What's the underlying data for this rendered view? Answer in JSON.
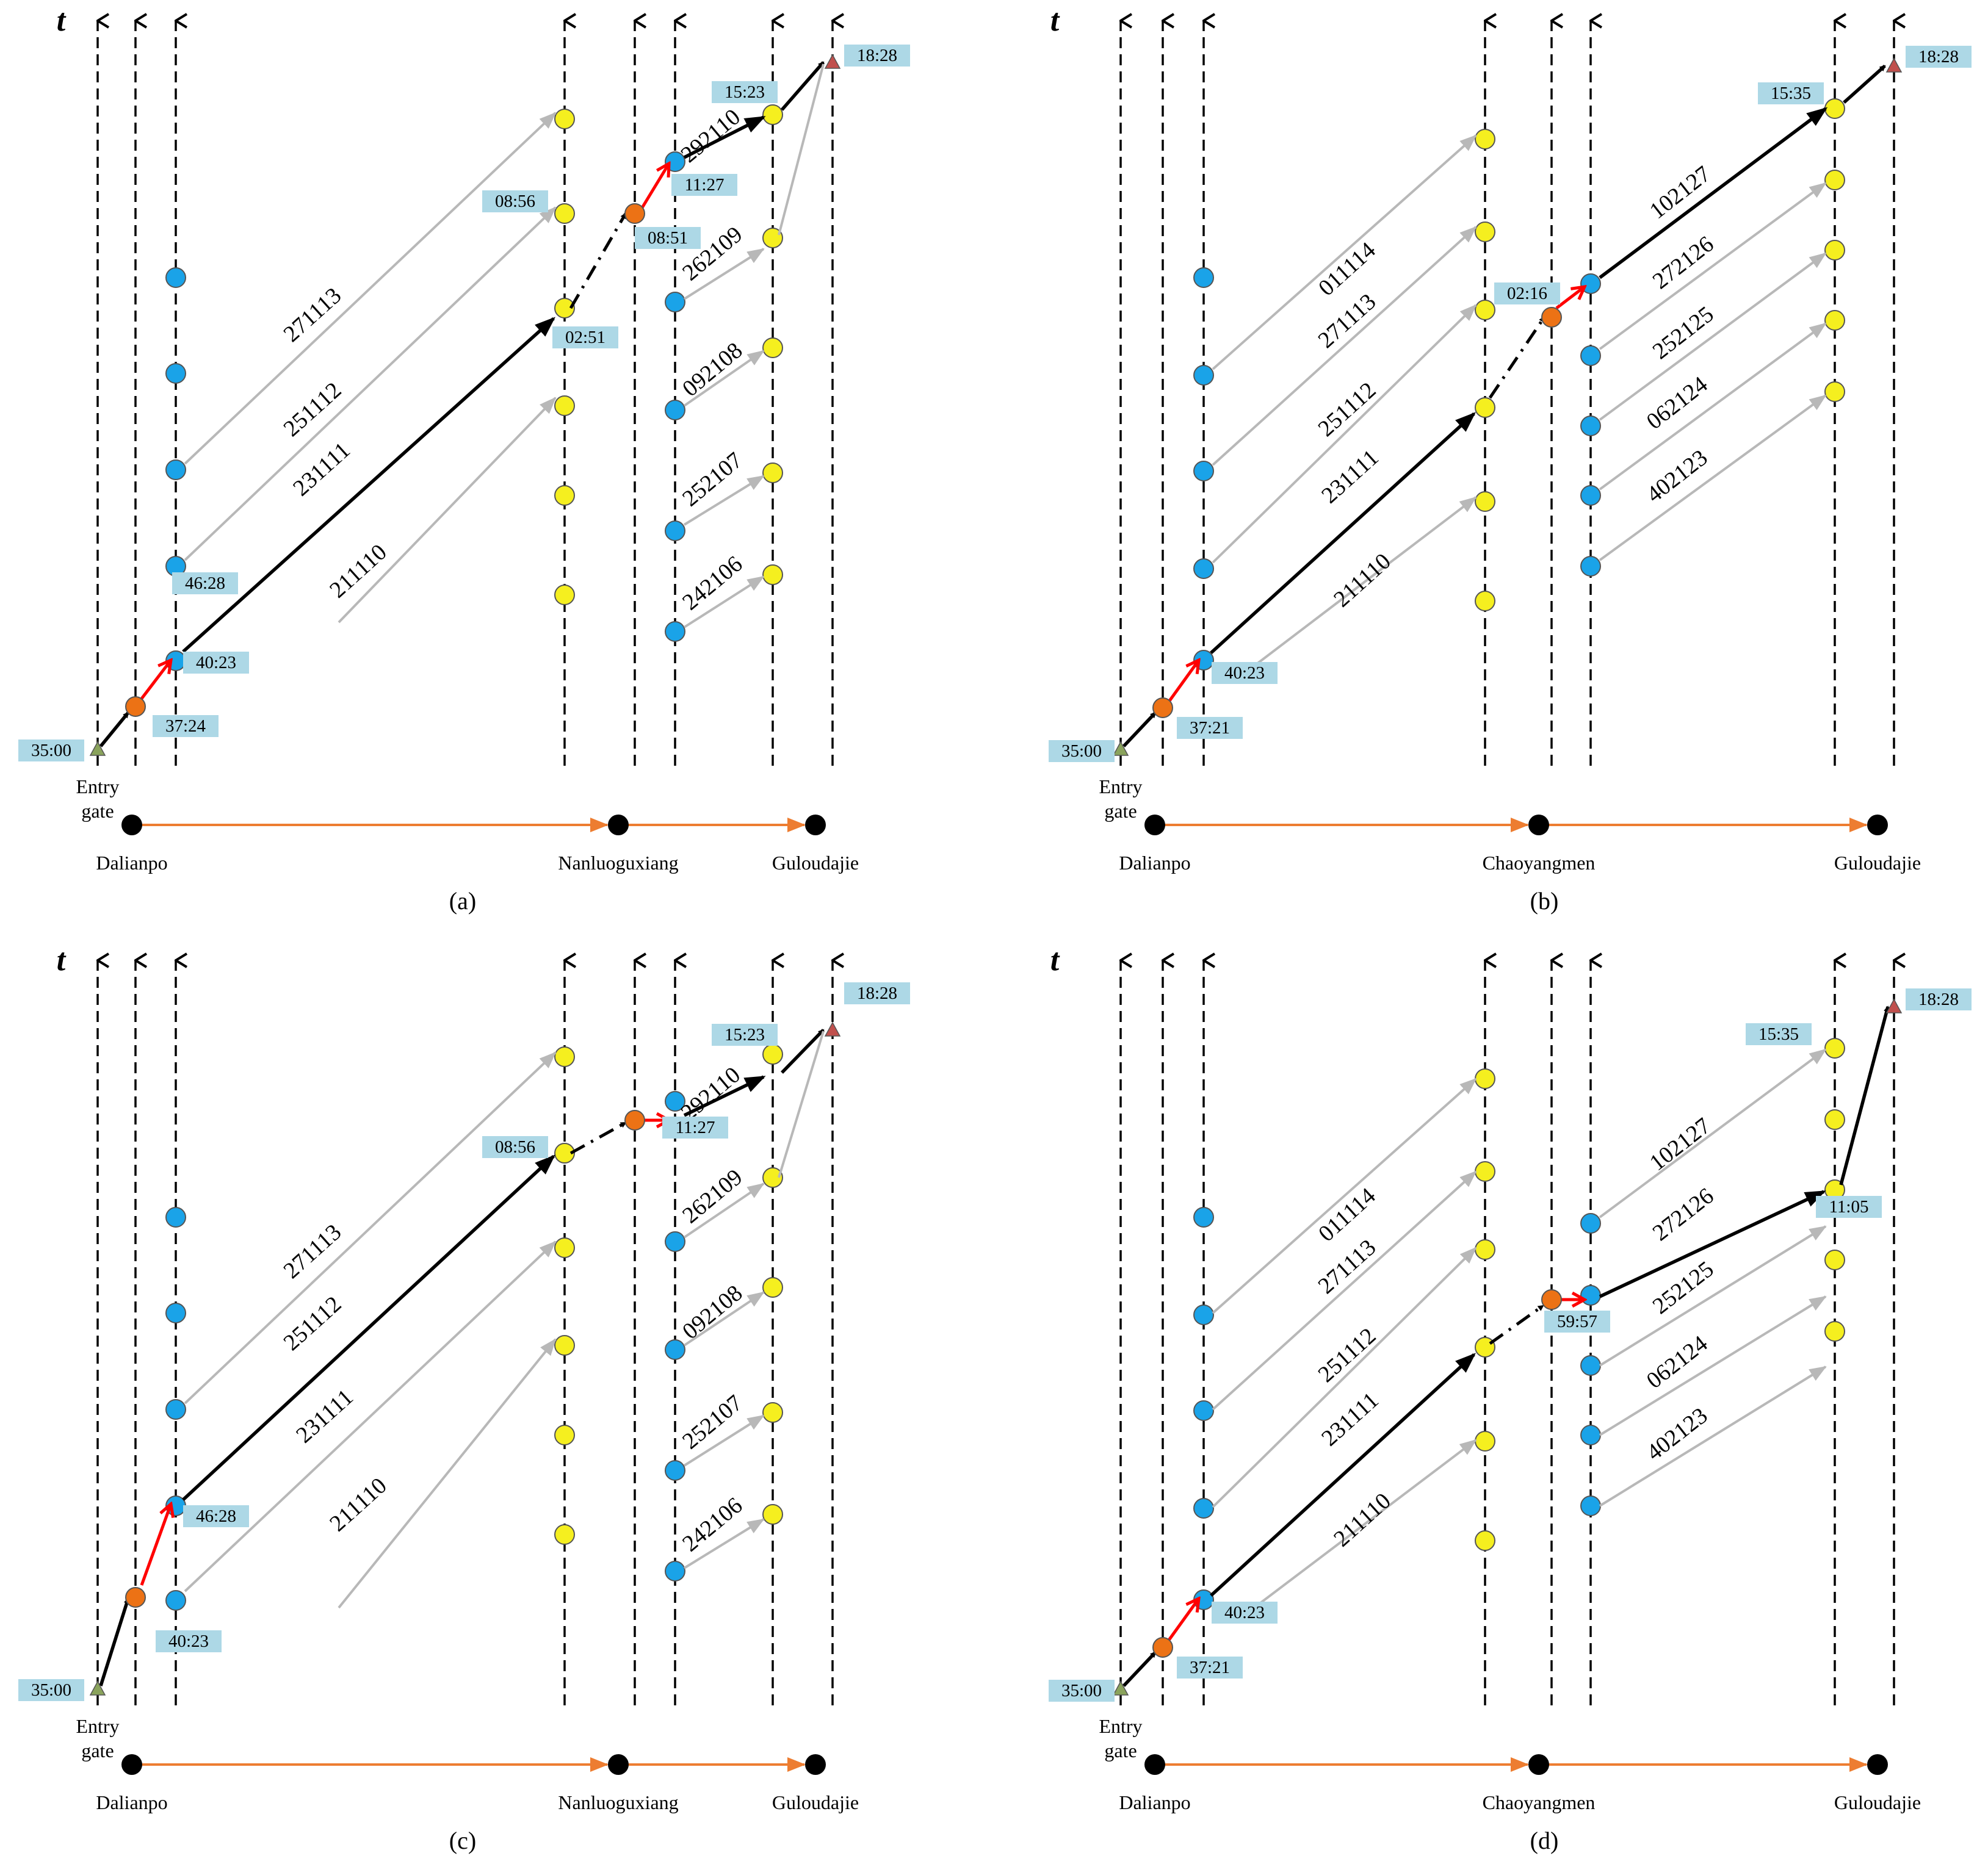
{
  "axis_label": "t",
  "colors": {
    "access_dot": "#f5ef1f",
    "platform_dot": "#1aa3e8",
    "transfer_dot": "#ec7215",
    "path_line": "#000000",
    "walk_line": "#ff0000",
    "other_train": "#b8b8b8",
    "time_box": "#add8e6",
    "station_arrow": "#ed7d31",
    "entry_marker": "#8aa35c",
    "exit_marker": "#c0504d"
  },
  "panels": [
    {
      "caption": "(a)",
      "entry_label": "Entry\ngate",
      "stations": [
        "Dalianpo",
        "Nanluoguxiang",
        "Guloudajie"
      ],
      "times": {
        "entry": "35:00",
        "arrive_platform": "37:24",
        "board": "40:23",
        "extra_board": "46:28",
        "arrive_transfer": "02:51",
        "arrive_transfer_alt": "08:56",
        "transfer_walk": "08:51",
        "board2": "11:27",
        "arrive_dest": "15:23",
        "exit": "18:28"
      },
      "trains_leg1": [
        "211110",
        "231111",
        "251112",
        "271113"
      ],
      "trains_leg2": [
        "242106",
        "252107",
        "092108",
        "262109",
        "292110"
      ]
    },
    {
      "caption": "(b)",
      "entry_label": "Entry\ngate",
      "stations": [
        "Dalianpo",
        "Chaoyangmen",
        "Guloudajie"
      ],
      "times": {
        "entry": "35:00",
        "arrive_platform": "37:21",
        "board": "40:23",
        "transfer_walk": "02:16",
        "arrive_dest": "15:35",
        "exit": "18:28"
      },
      "trains_leg1": [
        "211110",
        "231111",
        "251112",
        "271113",
        "011114"
      ],
      "trains_leg2": [
        "402123",
        "062124",
        "252125",
        "272126",
        "102127"
      ]
    },
    {
      "caption": "(c)",
      "entry_label": "Entry\ngate",
      "stations": [
        "Dalianpo",
        "Nanluoguxiang",
        "Guloudajie"
      ],
      "times": {
        "entry": "35:00",
        "arrive_platform": "40:23",
        "board": "46:28",
        "arrive_transfer": "08:56",
        "board2": "11:27",
        "arrive_dest": "15:23",
        "exit": "18:28"
      },
      "trains_leg1": [
        "211110",
        "231111",
        "251112",
        "271113"
      ],
      "trains_leg2": [
        "242106",
        "252107",
        "092108",
        "262109",
        "292110"
      ]
    },
    {
      "caption": "(d)",
      "entry_label": "Entry\ngate",
      "stations": [
        "Dalianpo",
        "Chaoyangmen",
        "Guloudajie"
      ],
      "times": {
        "entry": "35:00",
        "arrive_platform": "37:21",
        "board": "40:23",
        "transfer_walk": "59:57",
        "arrive_dest": "11:05",
        "arrive_dest_alt": "15:35",
        "exit": "18:28"
      },
      "trains_leg1": [
        "211110",
        "231111",
        "251112",
        "271113",
        "011114"
      ],
      "trains_leg2": [
        "402123",
        "062124",
        "252125",
        "272126",
        "102127"
      ]
    }
  ]
}
